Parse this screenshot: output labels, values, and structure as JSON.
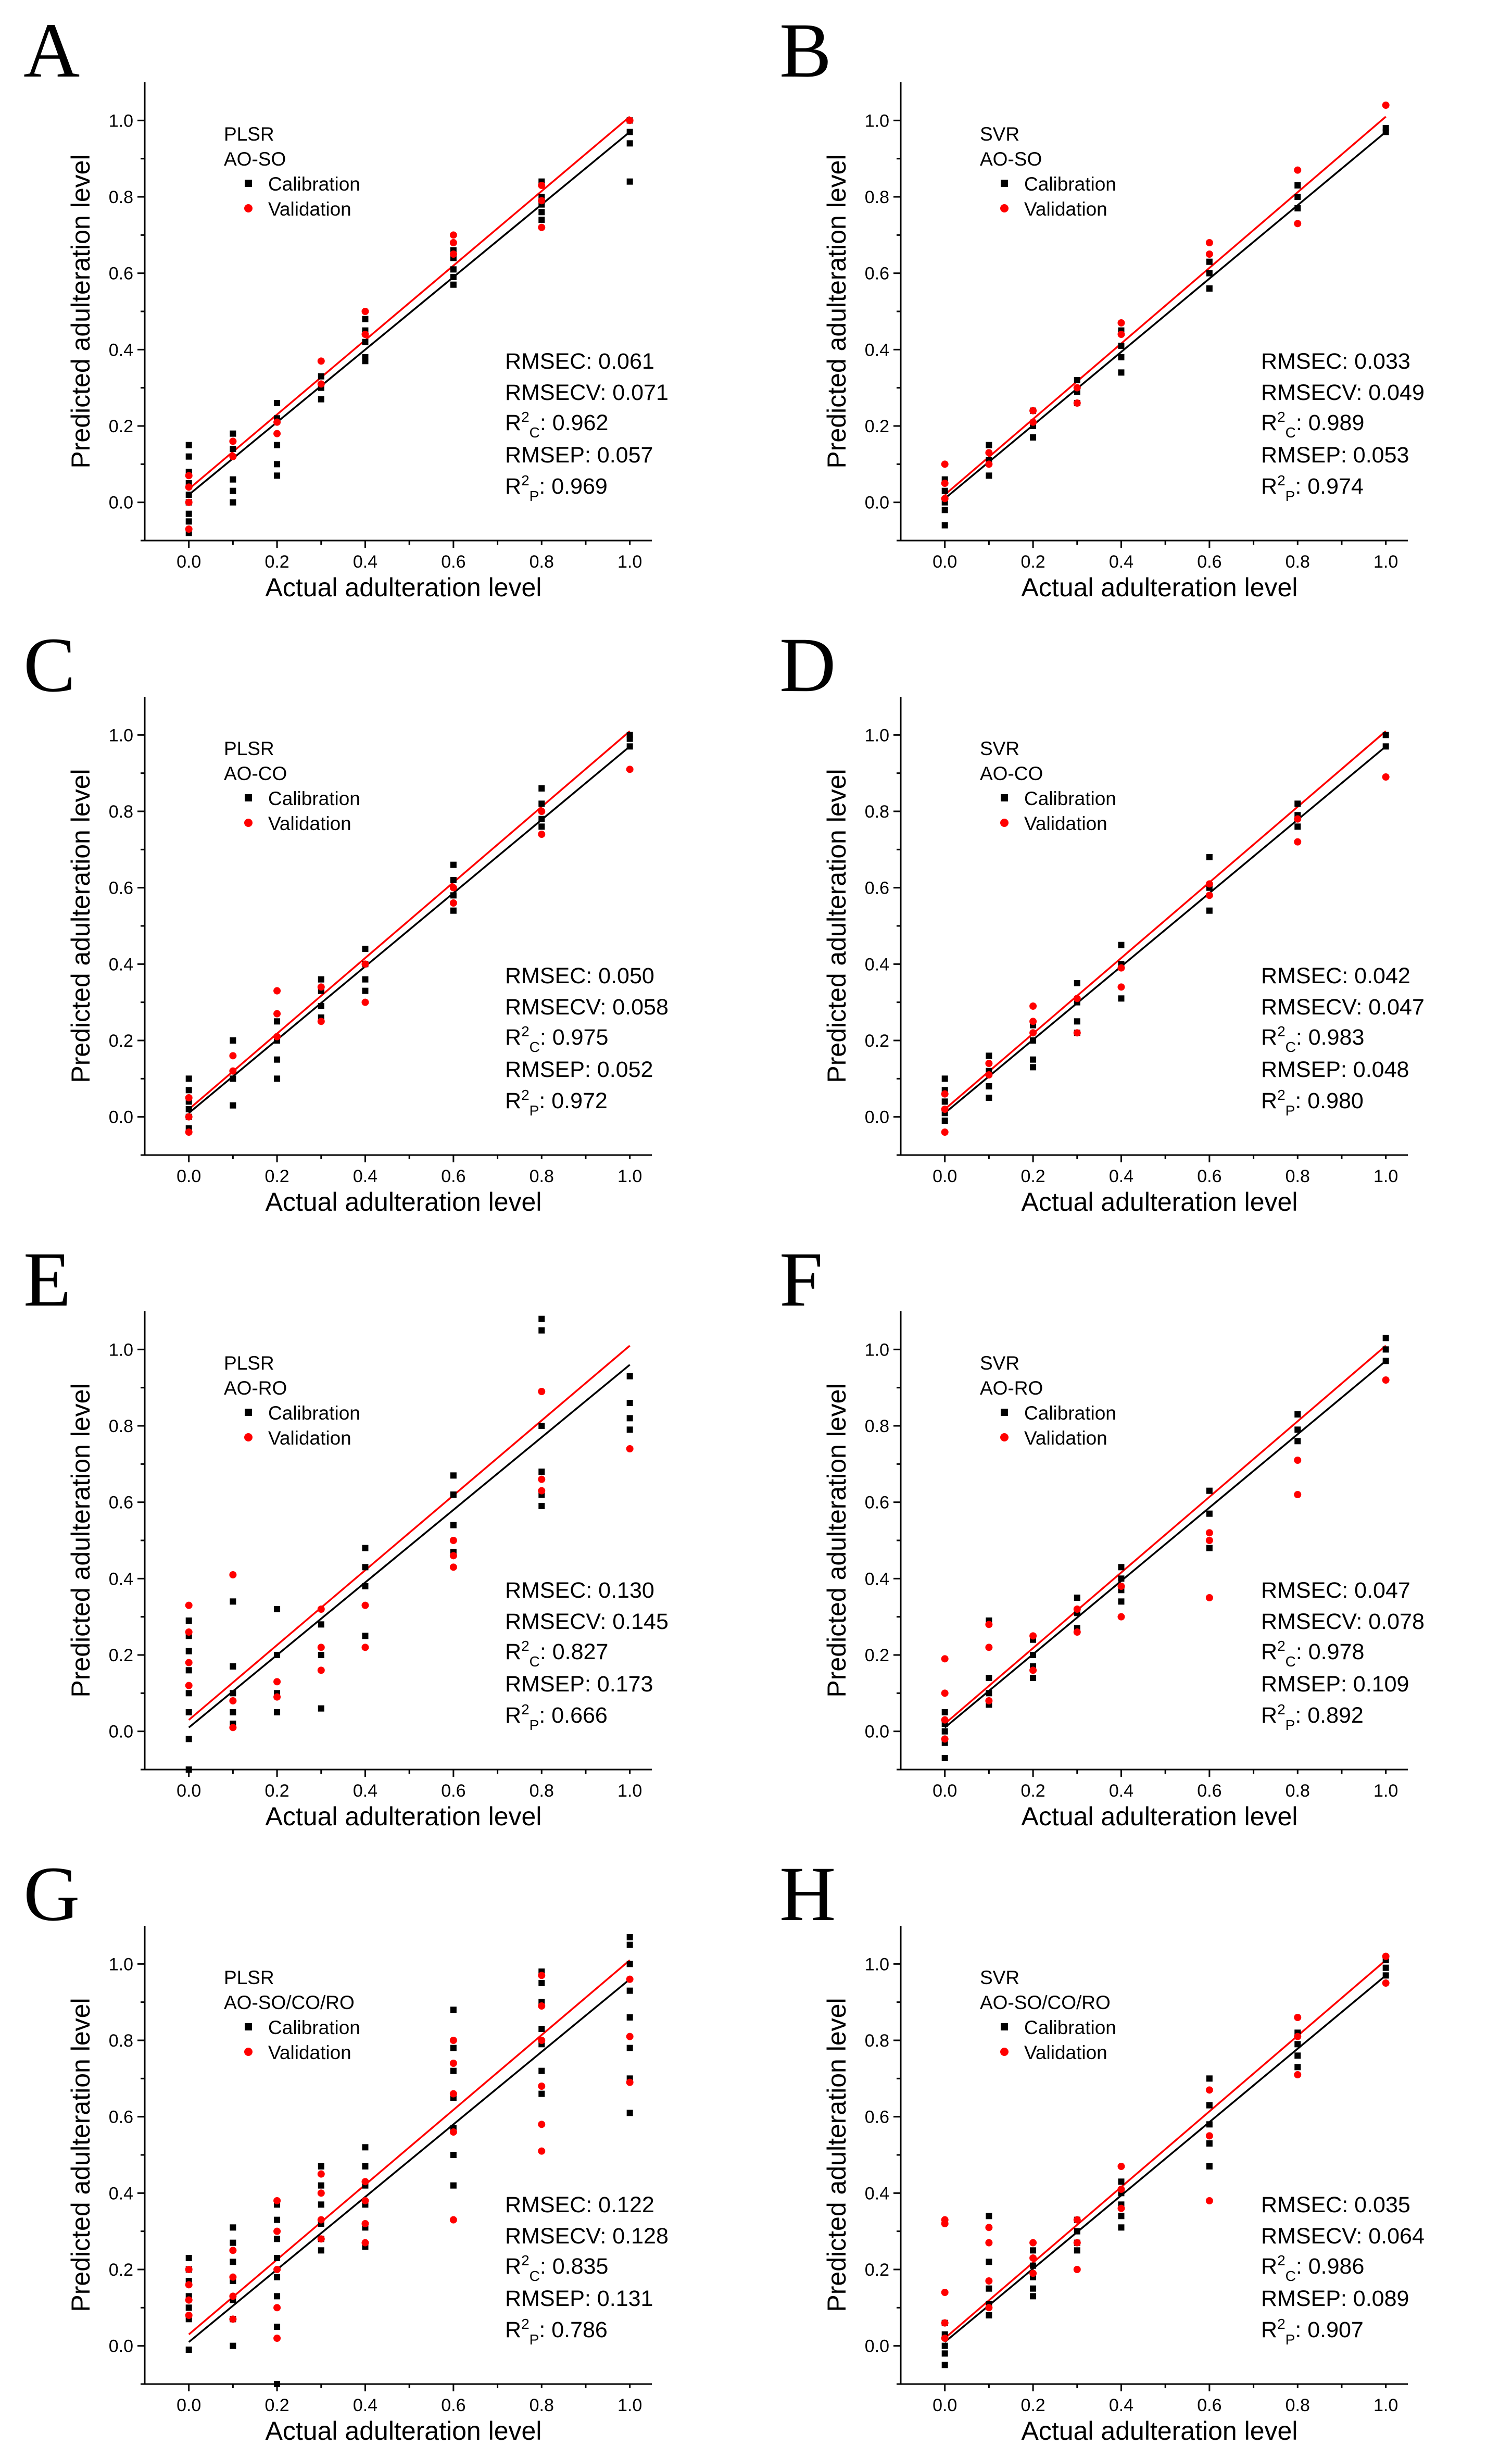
{
  "figure": {
    "xlabel": "Actual adulteration level",
    "ylabel": "Predicted adulteration level",
    "legend_calibration": "Calibration",
    "legend_validation": "Validation",
    "xlim": [
      -0.1,
      1.05
    ],
    "ylim": [
      -0.1,
      1.1
    ],
    "x_ticks": [
      0.0,
      0.2,
      0.4,
      0.6,
      0.8,
      1.0
    ],
    "y_ticks": [
      0.0,
      0.2,
      0.4,
      0.6,
      0.8,
      1.0
    ],
    "calibration_color": "#000000",
    "validation_color": "#ff0000"
  },
  "chart_data": [
    {
      "panel": "A",
      "type": "scatter",
      "model": "PLSR",
      "pair": "AO-SO",
      "stats": [
        "RMSEC: 0.061",
        "RMSECV: 0.071",
        "R2C: 0.962",
        "RMSEP: 0.057",
        "R2P: 0.969"
      ],
      "fit_calibration": {
        "intercept": 0.02,
        "slope": 0.95
      },
      "fit_validation": {
        "intercept": 0.035,
        "slope": 0.975
      },
      "calibration": {
        "x": [
          0,
          0,
          0,
          0,
          0,
          0,
          0,
          0,
          0,
          0.1,
          0.1,
          0.1,
          0.1,
          0.1,
          0.2,
          0.2,
          0.2,
          0.2,
          0.2,
          0.3,
          0.3,
          0.3,
          0.4,
          0.4,
          0.4,
          0.4,
          0.4,
          0.6,
          0.6,
          0.6,
          0.6,
          0.6,
          0.8,
          0.8,
          0.8,
          0.8,
          0.8,
          1.0,
          1.0,
          1.0,
          1.0
        ],
        "y": [
          0.15,
          0.12,
          0.08,
          0.05,
          0.02,
          0.0,
          -0.03,
          -0.05,
          -0.08,
          0.18,
          0.14,
          0.06,
          0.03,
          0.0,
          0.26,
          0.22,
          0.15,
          0.1,
          0.07,
          0.33,
          0.3,
          0.27,
          0.48,
          0.45,
          0.42,
          0.38,
          0.37,
          0.66,
          0.64,
          0.61,
          0.59,
          0.57,
          0.84,
          0.8,
          0.78,
          0.76,
          0.74,
          1.0,
          0.97,
          0.94,
          0.84
        ]
      },
      "validation": {
        "x": [
          0,
          0,
          0,
          0,
          0.1,
          0.1,
          0.2,
          0.2,
          0.3,
          0.3,
          0.4,
          0.4,
          0.6,
          0.6,
          0.6,
          0.8,
          0.8,
          0.8,
          1.0
        ],
        "y": [
          0.07,
          0.04,
          0.0,
          -0.07,
          0.16,
          0.12,
          0.21,
          0.18,
          0.37,
          0.31,
          0.5,
          0.44,
          0.7,
          0.68,
          0.65,
          0.83,
          0.79,
          0.72,
          1.0
        ]
      }
    },
    {
      "panel": "B",
      "type": "scatter",
      "model": "SVR",
      "pair": "AO-SO",
      "stats": [
        "RMSEC: 0.033",
        "RMSECV: 0.049",
        "R2C: 0.989",
        "RMSEP: 0.053",
        "R2P: 0.974"
      ],
      "fit_calibration": {
        "intercept": 0.01,
        "slope": 0.96
      },
      "fit_validation": {
        "intercept": 0.02,
        "slope": 0.99
      },
      "calibration": {
        "x": [
          0,
          0,
          0,
          0,
          0,
          0.1,
          0.1,
          0.1,
          0.2,
          0.2,
          0.2,
          0.3,
          0.3,
          0.3,
          0.4,
          0.4,
          0.4,
          0.4,
          0.6,
          0.6,
          0.6,
          0.8,
          0.8,
          0.8,
          1.0,
          1.0
        ],
        "y": [
          0.06,
          0.03,
          0.0,
          -0.02,
          -0.06,
          0.15,
          0.11,
          0.07,
          0.24,
          0.2,
          0.17,
          0.32,
          0.29,
          0.26,
          0.45,
          0.41,
          0.38,
          0.34,
          0.63,
          0.6,
          0.56,
          0.83,
          0.8,
          0.77,
          0.98,
          0.97
        ]
      },
      "validation": {
        "x": [
          0,
          0,
          0,
          0.1,
          0.1,
          0.2,
          0.2,
          0.3,
          0.3,
          0.4,
          0.4,
          0.6,
          0.6,
          0.8,
          0.8,
          1.0
        ],
        "y": [
          0.1,
          0.05,
          0.01,
          0.13,
          0.1,
          0.24,
          0.21,
          0.3,
          0.26,
          0.47,
          0.44,
          0.68,
          0.65,
          0.87,
          0.73,
          1.04
        ]
      }
    },
    {
      "panel": "C",
      "type": "scatter",
      "model": "PLSR",
      "pair": "AO-CO",
      "stats": [
        "RMSEC: 0.050",
        "RMSECV: 0.058",
        "R2C: 0.975",
        "RMSEP: 0.052",
        "R2P: 0.972"
      ],
      "fit_calibration": {
        "intercept": 0.01,
        "slope": 0.96
      },
      "fit_validation": {
        "intercept": 0.02,
        "slope": 0.99
      },
      "calibration": {
        "x": [
          0,
          0,
          0,
          0,
          0,
          0,
          0.1,
          0.1,
          0.1,
          0.2,
          0.2,
          0.2,
          0.2,
          0.3,
          0.3,
          0.3,
          0.3,
          0.4,
          0.4,
          0.4,
          0.4,
          0.6,
          0.6,
          0.6,
          0.6,
          0.8,
          0.8,
          0.8,
          0.8,
          1.0,
          1.0,
          1.0
        ],
        "y": [
          0.1,
          0.07,
          0.04,
          0.02,
          0.0,
          -0.03,
          0.2,
          0.1,
          0.03,
          0.25,
          0.2,
          0.15,
          0.1,
          0.36,
          0.33,
          0.29,
          0.26,
          0.44,
          0.4,
          0.36,
          0.33,
          0.66,
          0.62,
          0.58,
          0.54,
          0.86,
          0.82,
          0.78,
          0.76,
          1.0,
          0.99,
          0.97
        ]
      },
      "validation": {
        "x": [
          0,
          0,
          0,
          0.1,
          0.1,
          0.2,
          0.2,
          0.2,
          0.3,
          0.3,
          0.4,
          0.4,
          0.6,
          0.6,
          0.8,
          0.8,
          1.0
        ],
        "y": [
          0.05,
          0.0,
          -0.04,
          0.16,
          0.12,
          0.33,
          0.27,
          0.21,
          0.34,
          0.25,
          0.4,
          0.3,
          0.6,
          0.56,
          0.8,
          0.74,
          0.91
        ]
      }
    },
    {
      "panel": "D",
      "type": "scatter",
      "model": "SVR",
      "pair": "AO-CO",
      "stats": [
        "RMSEC: 0.042",
        "RMSECV: 0.047",
        "R2C: 0.983",
        "RMSEP: 0.048",
        "R2P: 0.980"
      ],
      "fit_calibration": {
        "intercept": 0.01,
        "slope": 0.96
      },
      "fit_validation": {
        "intercept": 0.02,
        "slope": 0.99
      },
      "calibration": {
        "x": [
          0,
          0,
          0,
          0,
          0,
          0.1,
          0.1,
          0.1,
          0.1,
          0.2,
          0.2,
          0.2,
          0.2,
          0.3,
          0.3,
          0.3,
          0.3,
          0.4,
          0.4,
          0.4,
          0.6,
          0.6,
          0.6,
          0.8,
          0.8,
          0.8,
          1.0,
          1.0
        ],
        "y": [
          0.1,
          0.07,
          0.04,
          0.01,
          -0.01,
          0.16,
          0.12,
          0.08,
          0.05,
          0.24,
          0.2,
          0.15,
          0.13,
          0.35,
          0.3,
          0.25,
          0.22,
          0.45,
          0.4,
          0.31,
          0.68,
          0.6,
          0.54,
          0.82,
          0.79,
          0.76,
          1.0,
          0.97
        ]
      },
      "validation": {
        "x": [
          0,
          0,
          0,
          0.1,
          0.1,
          0.2,
          0.2,
          0.2,
          0.3,
          0.3,
          0.4,
          0.4,
          0.6,
          0.6,
          0.8,
          0.8,
          1.0
        ],
        "y": [
          0.06,
          0.02,
          -0.04,
          0.14,
          0.11,
          0.29,
          0.25,
          0.22,
          0.31,
          0.22,
          0.39,
          0.34,
          0.61,
          0.58,
          0.78,
          0.72,
          0.89
        ]
      }
    },
    {
      "panel": "E",
      "type": "scatter",
      "model": "PLSR",
      "pair": "AO-RO",
      "stats": [
        "RMSEC: 0.130",
        "RMSECV: 0.145",
        "R2C: 0.827",
        "RMSEP: 0.173",
        "R2P: 0.666"
      ],
      "fit_calibration": {
        "intercept": 0.01,
        "slope": 0.95
      },
      "fit_validation": {
        "intercept": 0.03,
        "slope": 0.98
      },
      "calibration": {
        "x": [
          0,
          0,
          0,
          0,
          0,
          0,
          0,
          0,
          0.1,
          0.1,
          0.1,
          0.1,
          0.1,
          0.2,
          0.2,
          0.2,
          0.2,
          0.3,
          0.3,
          0.3,
          0.4,
          0.4,
          0.4,
          0.4,
          0.6,
          0.6,
          0.6,
          0.6,
          0.8,
          0.8,
          0.8,
          0.8,
          0.8,
          0.8,
          1.0,
          1.0,
          1.0,
          1.0
        ],
        "y": [
          0.29,
          0.25,
          0.21,
          0.16,
          0.1,
          0.05,
          -0.02,
          -0.1,
          0.34,
          0.17,
          0.1,
          0.05,
          0.02,
          0.32,
          0.2,
          0.1,
          0.05,
          0.28,
          0.2,
          0.06,
          0.48,
          0.43,
          0.38,
          0.25,
          0.67,
          0.62,
          0.54,
          0.47,
          1.08,
          1.05,
          0.8,
          0.68,
          0.62,
          0.59,
          0.93,
          0.86,
          0.82,
          0.79
        ]
      },
      "validation": {
        "x": [
          0,
          0,
          0,
          0,
          0.1,
          0.1,
          0.1,
          0.2,
          0.2,
          0.3,
          0.3,
          0.3,
          0.4,
          0.4,
          0.6,
          0.6,
          0.6,
          0.8,
          0.8,
          0.8,
          1.0
        ],
        "y": [
          0.33,
          0.26,
          0.18,
          0.12,
          0.41,
          0.08,
          0.01,
          0.13,
          0.09,
          0.32,
          0.22,
          0.16,
          0.33,
          0.22,
          0.5,
          0.46,
          0.43,
          0.89,
          0.66,
          0.63,
          0.74
        ]
      }
    },
    {
      "panel": "F",
      "type": "scatter",
      "model": "SVR",
      "pair": "AO-RO",
      "stats": [
        "RMSEC: 0.047",
        "RMSECV: 0.078",
        "R2C: 0.978",
        "RMSEP: 0.109",
        "R2P: 0.892"
      ],
      "fit_calibration": {
        "intercept": 0.01,
        "slope": 0.96
      },
      "fit_validation": {
        "intercept": 0.02,
        "slope": 0.99
      },
      "calibration": {
        "x": [
          0,
          0,
          0,
          0,
          0,
          0.1,
          0.1,
          0.1,
          0.1,
          0.2,
          0.2,
          0.2,
          0.2,
          0.3,
          0.3,
          0.3,
          0.4,
          0.4,
          0.4,
          0.4,
          0.6,
          0.6,
          0.6,
          0.8,
          0.8,
          0.8,
          1.0,
          1.0,
          1.0
        ],
        "y": [
          0.05,
          0.02,
          0.0,
          -0.03,
          -0.07,
          0.29,
          0.14,
          0.1,
          0.07,
          0.24,
          0.2,
          0.17,
          0.14,
          0.35,
          0.31,
          0.27,
          0.43,
          0.4,
          0.37,
          0.34,
          0.63,
          0.57,
          0.48,
          0.83,
          0.79,
          0.76,
          1.03,
          1.0,
          0.97
        ]
      },
      "validation": {
        "x": [
          0,
          0,
          0,
          0,
          0.1,
          0.1,
          0.1,
          0.2,
          0.2,
          0.3,
          0.3,
          0.4,
          0.4,
          0.6,
          0.6,
          0.6,
          0.8,
          0.8,
          1.0
        ],
        "y": [
          0.19,
          0.1,
          0.03,
          -0.02,
          0.28,
          0.22,
          0.08,
          0.25,
          0.16,
          0.32,
          0.26,
          0.38,
          0.3,
          0.52,
          0.5,
          0.35,
          0.71,
          0.62,
          0.92
        ]
      }
    },
    {
      "panel": "G",
      "type": "scatter",
      "model": "PLSR",
      "pair": "AO-SO/CO/RO",
      "stats": [
        "RMSEC: 0.122",
        "RMSECV: 0.128",
        "R2C: 0.835",
        "RMSEP: 0.131",
        "R2P: 0.786"
      ],
      "fit_calibration": {
        "intercept": 0.01,
        "slope": 0.95
      },
      "fit_validation": {
        "intercept": 0.03,
        "slope": 0.98
      },
      "calibration": {
        "x": [
          0,
          0,
          0,
          0,
          0,
          0,
          0,
          0.1,
          0.1,
          0.1,
          0.1,
          0.1,
          0.1,
          0.1,
          0.2,
          0.2,
          0.2,
          0.2,
          0.2,
          0.2,
          0.2,
          0.2,
          0.3,
          0.3,
          0.3,
          0.3,
          0.3,
          0.3,
          0.4,
          0.4,
          0.4,
          0.4,
          0.4,
          0.4,
          0.6,
          0.6,
          0.6,
          0.6,
          0.6,
          0.6,
          0.6,
          0.8,
          0.8,
          0.8,
          0.8,
          0.8,
          0.8,
          0.8,
          1.0,
          1.0,
          1.0,
          1.0,
          1.0,
          1.0,
          1.0,
          1.0
        ],
        "y": [
          0.23,
          0.2,
          0.17,
          0.13,
          0.1,
          0.07,
          -0.01,
          0.31,
          0.27,
          0.22,
          0.17,
          0.12,
          0.07,
          0.0,
          0.37,
          0.33,
          0.28,
          0.23,
          0.18,
          0.13,
          0.05,
          -0.1,
          0.47,
          0.42,
          0.37,
          0.32,
          0.28,
          0.25,
          0.52,
          0.47,
          0.42,
          0.37,
          0.31,
          0.26,
          0.88,
          0.78,
          0.72,
          0.65,
          0.57,
          0.5,
          0.42,
          0.98,
          0.95,
          0.9,
          0.83,
          0.79,
          0.72,
          0.66,
          1.07,
          1.05,
          1.0,
          0.93,
          0.86,
          0.78,
          0.7,
          0.61
        ]
      },
      "validation": {
        "x": [
          0,
          0,
          0,
          0,
          0.1,
          0.1,
          0.1,
          0.1,
          0.2,
          0.2,
          0.2,
          0.2,
          0.2,
          0.3,
          0.3,
          0.3,
          0.3,
          0.4,
          0.4,
          0.4,
          0.4,
          0.6,
          0.6,
          0.6,
          0.6,
          0.6,
          0.8,
          0.8,
          0.8,
          0.8,
          0.8,
          0.8,
          1.0,
          1.0,
          1.0
        ],
        "y": [
          0.2,
          0.16,
          0.12,
          0.08,
          0.25,
          0.18,
          0.13,
          0.07,
          0.38,
          0.3,
          0.2,
          0.1,
          0.02,
          0.45,
          0.4,
          0.33,
          0.28,
          0.43,
          0.38,
          0.32,
          0.27,
          0.8,
          0.74,
          0.66,
          0.56,
          0.33,
          0.97,
          0.89,
          0.8,
          0.68,
          0.58,
          0.51,
          0.96,
          0.81,
          0.69
        ]
      }
    },
    {
      "panel": "H",
      "type": "scatter",
      "model": "SVR",
      "pair": "AO-SO/CO/RO",
      "stats": [
        "RMSEC: 0.035",
        "RMSECV: 0.064",
        "R2C: 0.986",
        "RMSEP: 0.089",
        "R2P: 0.907"
      ],
      "fit_calibration": {
        "intercept": 0.01,
        "slope": 0.96
      },
      "fit_validation": {
        "intercept": 0.02,
        "slope": 0.99
      },
      "calibration": {
        "x": [
          0,
          0,
          0,
          0,
          0,
          0.1,
          0.1,
          0.1,
          0.1,
          0.1,
          0.2,
          0.2,
          0.2,
          0.2,
          0.2,
          0.3,
          0.3,
          0.3,
          0.3,
          0.4,
          0.4,
          0.4,
          0.4,
          0.4,
          0.6,
          0.6,
          0.6,
          0.6,
          0.6,
          0.8,
          0.8,
          0.8,
          0.8,
          1.0,
          1.0,
          1.0
        ],
        "y": [
          0.06,
          0.03,
          0.0,
          -0.02,
          -0.05,
          0.34,
          0.22,
          0.15,
          0.11,
          0.08,
          0.25,
          0.21,
          0.18,
          0.15,
          0.13,
          0.33,
          0.3,
          0.27,
          0.25,
          0.43,
          0.4,
          0.37,
          0.34,
          0.31,
          0.7,
          0.63,
          0.58,
          0.53,
          0.47,
          0.82,
          0.79,
          0.76,
          0.73,
          1.01,
          0.99,
          0.97
        ]
      },
      "validation": {
        "x": [
          0,
          0,
          0,
          0,
          0,
          0.1,
          0.1,
          0.1,
          0.1,
          0.2,
          0.2,
          0.2,
          0.3,
          0.3,
          0.3,
          0.4,
          0.4,
          0.4,
          0.6,
          0.6,
          0.6,
          0.8,
          0.8,
          0.8,
          1.0,
          1.0
        ],
        "y": [
          0.33,
          0.32,
          0.14,
          0.06,
          0.02,
          0.31,
          0.27,
          0.17,
          0.1,
          0.27,
          0.23,
          0.19,
          0.33,
          0.27,
          0.2,
          0.47,
          0.41,
          0.36,
          0.67,
          0.55,
          0.38,
          0.86,
          0.81,
          0.71,
          1.02,
          0.95
        ]
      }
    }
  ]
}
